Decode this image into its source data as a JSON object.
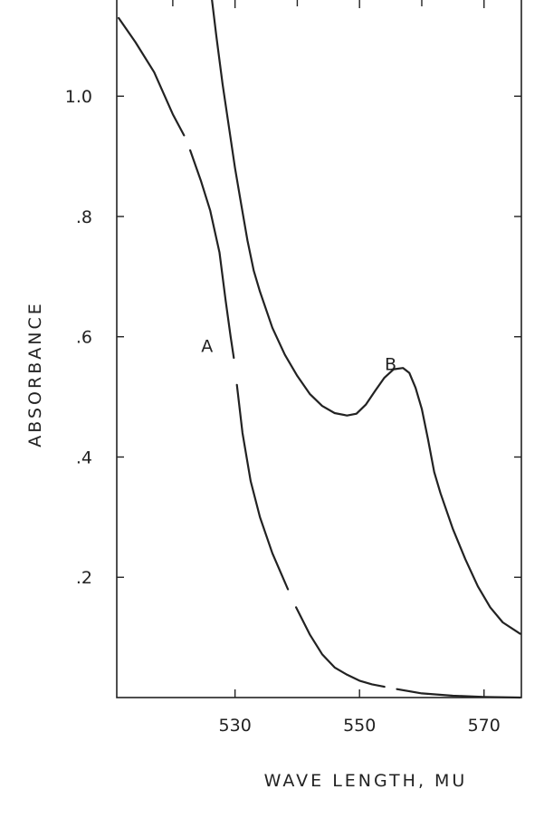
{
  "chart_data": {
    "type": "line",
    "xlabel": "WAVE LENGTH, MU",
    "ylabel": "ABSORBANCE",
    "xlim": [
      511,
      576
    ],
    "ylim": [
      0,
      1.16
    ],
    "x_ticks": [
      {
        "value": 530,
        "label": "530"
      },
      {
        "value": 550,
        "label": "550"
      },
      {
        "value": 570,
        "label": "570"
      }
    ],
    "x_minor_ticks": [
      520,
      540,
      560
    ],
    "y_ticks": [
      {
        "value": 1.0,
        "label": "1.0"
      },
      {
        "value": 0.8,
        "label": ".8"
      },
      {
        "value": 0.6,
        "label": ".6"
      },
      {
        "value": 0.4,
        "label": ".4"
      },
      {
        "value": 0.2,
        "label": ".2"
      }
    ],
    "grid": false,
    "series": [
      {
        "name": "A",
        "label": "A",
        "label_at": [
          525.5,
          0.585
        ],
        "color": "#222222",
        "segments": [
          [
            [
              511.3,
              1.13
            ],
            [
              514,
              1.09
            ],
            [
              517,
              1.04
            ],
            [
              520,
              0.97
            ],
            [
              521.8,
              0.935
            ]
          ],
          [
            [
              522.8,
              0.91
            ],
            [
              524.5,
              0.86
            ],
            [
              526,
              0.81
            ],
            [
              527.5,
              0.74
            ],
            [
              528.5,
              0.66
            ],
            [
              529.3,
              0.6
            ],
            [
              529.8,
              0.565
            ]
          ],
          [
            [
              530.3,
              0.52
            ],
            [
              531.2,
              0.44
            ],
            [
              532.5,
              0.36
            ],
            [
              534,
              0.3
            ],
            [
              536,
              0.24
            ],
            [
              538.5,
              0.18
            ]
          ],
          [
            [
              539.8,
              0.15
            ],
            [
              542,
              0.105
            ],
            [
              544,
              0.072
            ],
            [
              546,
              0.05
            ],
            [
              548,
              0.038
            ],
            [
              550,
              0.028
            ],
            [
              552,
              0.022
            ],
            [
              554,
              0.018
            ]
          ],
          [
            [
              556,
              0.014
            ],
            [
              560,
              0.007
            ],
            [
              565,
              0.003
            ],
            [
              570,
              0.001
            ],
            [
              575.8,
              0
            ]
          ]
        ]
      },
      {
        "name": "B",
        "label": "B",
        "label_at": [
          555,
          0.555
        ],
        "color": "#222222",
        "segments": [
          [
            [
              526.3,
              1.16
            ],
            [
              527,
              1.1
            ],
            [
              528,
              1.02
            ],
            [
              529,
              0.95
            ],
            [
              530,
              0.88
            ],
            [
              531,
              0.82
            ],
            [
              532,
              0.76
            ],
            [
              533,
              0.71
            ],
            [
              534,
              0.675
            ],
            [
              536,
              0.615
            ],
            [
              538,
              0.57
            ],
            [
              540,
              0.535
            ],
            [
              542,
              0.505
            ],
            [
              544,
              0.485
            ],
            [
              546,
              0.473
            ],
            [
              548,
              0.469
            ],
            [
              549.5,
              0.472
            ],
            [
              551,
              0.487
            ],
            [
              552.5,
              0.51
            ],
            [
              554,
              0.532
            ],
            [
              555.5,
              0.546
            ],
            [
              557,
              0.548
            ],
            [
              558,
              0.54
            ],
            [
              559,
              0.515
            ],
            [
              560,
              0.48
            ],
            [
              561,
              0.43
            ],
            [
              562,
              0.375
            ],
            [
              563,
              0.34
            ],
            [
              565,
              0.28
            ],
            [
              567,
              0.23
            ],
            [
              569,
              0.185
            ],
            [
              571,
              0.15
            ],
            [
              573,
              0.125
            ],
            [
              575.8,
              0.106
            ]
          ]
        ]
      }
    ]
  }
}
